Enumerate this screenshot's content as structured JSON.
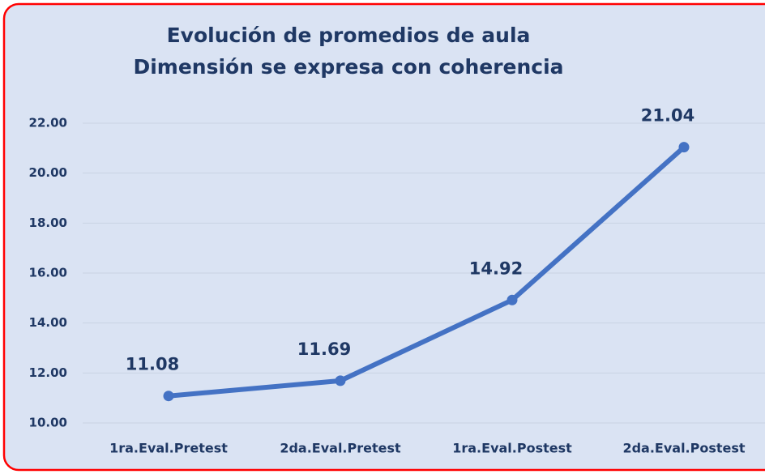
{
  "chart_data": {
    "type": "line",
    "title": [
      "Evolución de promedios de aula",
      "Dimensión se expresa con coherencia"
    ],
    "categories": [
      "1ra.Eval.Pretest",
      "2da.Eval.Pretest",
      "1ra.Eval.Postest",
      "2da.Eval.Postest"
    ],
    "values": [
      11.08,
      11.69,
      14.92,
      21.04
    ],
    "color": "#4472c4",
    "ylim": [
      10,
      22
    ],
    "yticks": [
      {
        "value": 10,
        "label": "10.00"
      },
      {
        "value": 12,
        "label": "12.00"
      },
      {
        "value": 14,
        "label": "14.00"
      },
      {
        "value": 16,
        "label": "16.00"
      },
      {
        "value": 18,
        "label": "18.00"
      },
      {
        "value": 20,
        "label": "20.00"
      },
      {
        "value": 22,
        "label": "22.00"
      }
    ],
    "grid": true
  }
}
